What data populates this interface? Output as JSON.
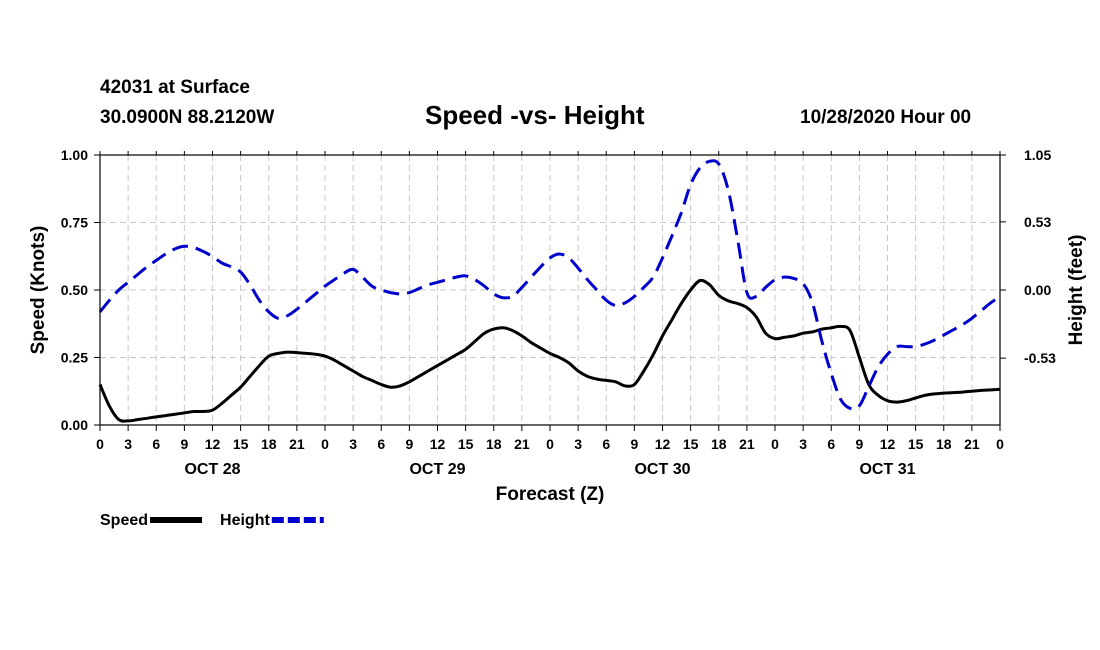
{
  "header": {
    "station": "42031 at Surface",
    "coords": "30.0900N 88.2120W",
    "run_time": "10/28/2020 Hour 00"
  },
  "chart_data": {
    "type": "line",
    "title": "Speed -vs- Height",
    "xlabel": "Forecast (Z)",
    "ylabel": "Speed (Knots)",
    "ylabel_right": "Height (feet)",
    "x_range_hours": [
      0,
      96
    ],
    "ylim": [
      0,
      1.0
    ],
    "ylim_right": [
      -1.05,
      1.05
    ],
    "grid": true,
    "legend_position": "bottom-left",
    "x_tick_step_hours": 3,
    "x_tick_labels": [
      "0",
      "3",
      "6",
      "9",
      "12",
      "15",
      "18",
      "21",
      "0",
      "3",
      "6",
      "9",
      "12",
      "15",
      "18",
      "21",
      "0",
      "3",
      "6",
      "9",
      "12",
      "15",
      "18",
      "21",
      "0",
      "3",
      "6",
      "9",
      "12",
      "15",
      "18",
      "21",
      "0"
    ],
    "day_labels": [
      {
        "label": "OCT 28",
        "hour": 12
      },
      {
        "label": "OCT 29",
        "hour": 36
      },
      {
        "label": "OCT 30",
        "hour": 60
      },
      {
        "label": "OCT 31",
        "hour": 84
      }
    ],
    "y_ticks_left": [
      "0.00",
      "0.25",
      "0.50",
      "0.75",
      "1.00"
    ],
    "y_tick_values_left": [
      0,
      0.25,
      0.5,
      0.75,
      1.0
    ],
    "y_ticks_right": [
      "1.05",
      "0.53",
      "0.00",
      "-0.53"
    ],
    "y_tick_values_right": [
      1.05,
      0.53,
      0.0,
      -0.53
    ],
    "series": [
      {
        "name": "Speed",
        "axis": "left",
        "color": "#000000",
        "style": "solid",
        "x": [
          0,
          1,
          2,
          3,
          4,
          5,
          6,
          7,
          8,
          9,
          10,
          11,
          12,
          13,
          14,
          15,
          16,
          17,
          18,
          19,
          20,
          21,
          22,
          23,
          24,
          25,
          26,
          27,
          28,
          29,
          30,
          31,
          32,
          33,
          34,
          35,
          36,
          37,
          38,
          39,
          40,
          41,
          42,
          43,
          44,
          45,
          46,
          47,
          48,
          49,
          50,
          51,
          52,
          53,
          54,
          55,
          56,
          57,
          58,
          59,
          60,
          61,
          62,
          63,
          64,
          65,
          66,
          67,
          68,
          69,
          70,
          71,
          72,
          73,
          74,
          75,
          76,
          77,
          78,
          79,
          80,
          81,
          82,
          83,
          84,
          85,
          86,
          87,
          88,
          89,
          90,
          91,
          92,
          93,
          94,
          95,
          96
        ],
        "values": [
          0.15,
          0.07,
          0.02,
          0.015,
          0.02,
          0.025,
          0.03,
          0.035,
          0.04,
          0.045,
          0.05,
          0.05,
          0.055,
          0.08,
          0.11,
          0.14,
          0.18,
          0.22,
          0.255,
          0.265,
          0.27,
          0.268,
          0.265,
          0.262,
          0.255,
          0.24,
          0.22,
          0.2,
          0.18,
          0.165,
          0.15,
          0.14,
          0.145,
          0.16,
          0.18,
          0.2,
          0.22,
          0.24,
          0.26,
          0.28,
          0.31,
          0.34,
          0.355,
          0.36,
          0.35,
          0.33,
          0.305,
          0.285,
          0.265,
          0.25,
          0.23,
          0.2,
          0.18,
          0.17,
          0.165,
          0.16,
          0.145,
          0.15,
          0.2,
          0.26,
          0.33,
          0.39,
          0.45,
          0.5,
          0.535,
          0.52,
          0.48,
          0.46,
          0.45,
          0.435,
          0.4,
          0.34,
          0.32,
          0.325,
          0.33,
          0.34,
          0.345,
          0.355,
          0.36,
          0.365,
          0.35,
          0.25,
          0.15,
          0.11,
          0.09,
          0.085,
          0.09,
          0.1,
          0.11,
          0.115,
          0.118,
          0.12,
          0.122,
          0.125,
          0.128,
          0.13,
          0.132
        ]
      },
      {
        "name": "Height",
        "axis": "right",
        "color": "#0000cc",
        "style": "dashed",
        "x": [
          0,
          1,
          2,
          3,
          4,
          5,
          6,
          7,
          8,
          9,
          10,
          11,
          12,
          13,
          14,
          15,
          16,
          17,
          18,
          19,
          20,
          21,
          22,
          23,
          24,
          25,
          26,
          27,
          28,
          29,
          30,
          31,
          32,
          33,
          34,
          35,
          36,
          37,
          38,
          39,
          40,
          41,
          42,
          43,
          44,
          45,
          46,
          47,
          48,
          49,
          50,
          51,
          52,
          53,
          54,
          55,
          56,
          57,
          58,
          59,
          60,
          61,
          62,
          63,
          64,
          65,
          66,
          67,
          68,
          69,
          70,
          71,
          72,
          73,
          74,
          75,
          76,
          77,
          78,
          79,
          80,
          81,
          82,
          83,
          84,
          85,
          86,
          87,
          88,
          89,
          90,
          91,
          92,
          93,
          94,
          95,
          96
        ],
        "values": [
          -0.17,
          -0.08,
          0.0,
          0.06,
          0.12,
          0.18,
          0.23,
          0.28,
          0.32,
          0.34,
          0.33,
          0.3,
          0.26,
          0.21,
          0.18,
          0.14,
          0.04,
          -0.08,
          -0.17,
          -0.22,
          -0.2,
          -0.15,
          -0.09,
          -0.03,
          0.03,
          0.08,
          0.13,
          0.16,
          0.1,
          0.03,
          0.0,
          -0.02,
          -0.03,
          -0.02,
          0.01,
          0.04,
          0.06,
          0.08,
          0.1,
          0.11,
          0.08,
          0.03,
          -0.03,
          -0.06,
          -0.05,
          0.02,
          0.1,
          0.18,
          0.25,
          0.28,
          0.25,
          0.17,
          0.08,
          0.0,
          -0.08,
          -0.12,
          -0.1,
          -0.05,
          0.02,
          0.1,
          0.25,
          0.42,
          0.6,
          0.82,
          0.95,
          1.0,
          0.98,
          0.78,
          0.4,
          -0.02,
          -0.05,
          0.02,
          0.08,
          0.1,
          0.09,
          0.05,
          -0.1,
          -0.4,
          -0.65,
          -0.85,
          -0.92,
          -0.9,
          -0.75,
          -0.6,
          -0.5,
          -0.44,
          -0.44,
          -0.44,
          -0.42,
          -0.39,
          -0.35,
          -0.31,
          -0.27,
          -0.22,
          -0.16,
          -0.1,
          -0.05
        ]
      }
    ],
    "legend": [
      {
        "label": "Speed",
        "color": "#000000",
        "style": "solid"
      },
      {
        "label": "Height",
        "color": "#0000cc",
        "style": "dashed"
      }
    ]
  }
}
